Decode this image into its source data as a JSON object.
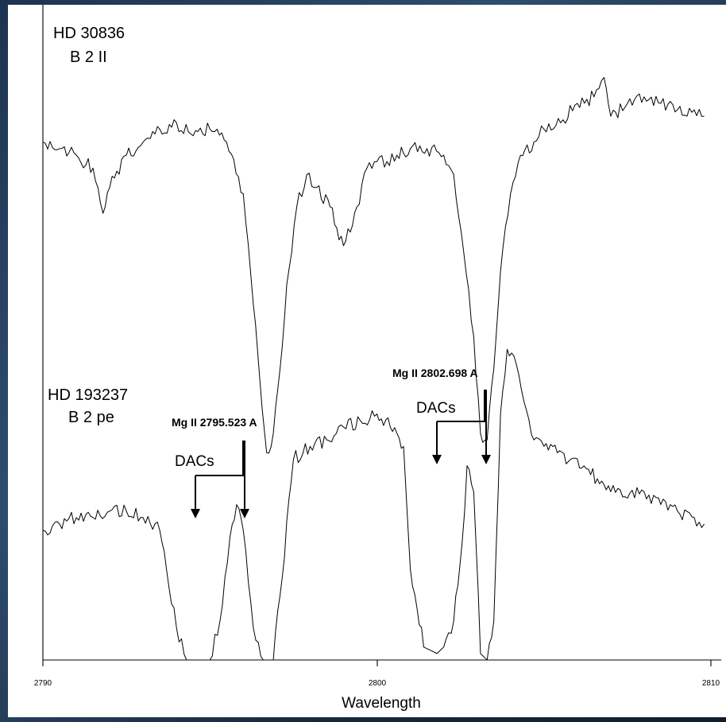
{
  "chart_data": {
    "type": "line",
    "title": "",
    "xlabel": "Wavelength",
    "ylabel": "",
    "xlim": [
      2790,
      2810
    ],
    "x_ticks": [
      "2790",
      "2800",
      "2810"
    ],
    "grid": false,
    "legend": "none",
    "series": [
      {
        "name": "HD 30836",
        "spectral_type": "B 2 II",
        "x": [
          2790.0,
          2790.5,
          2791.0,
          2791.5,
          2791.8,
          2792.0,
          2792.5,
          2793.0,
          2793.5,
          2794.0,
          2794.5,
          2795.0,
          2795.5,
          2796.0,
          2796.3,
          2796.5,
          2796.7,
          2796.9,
          2797.1,
          2797.3,
          2797.6,
          2797.9,
          2798.2,
          2798.6,
          2799.0,
          2799.4,
          2799.7,
          2800.0,
          2800.3,
          2800.6,
          2801.0,
          2801.5,
          2802.0,
          2802.3,
          2802.6,
          2802.9,
          2803.1,
          2803.3,
          2803.5,
          2803.7,
          2804.0,
          2804.3,
          2804.7,
          2805.0,
          2805.5,
          2806.0,
          2806.5,
          2806.8,
          2807.0,
          2807.5,
          2808.0,
          2808.5,
          2809.0,
          2809.5,
          2809.8
        ],
        "y": [
          0.8,
          0.79,
          0.78,
          0.76,
          0.69,
          0.73,
          0.78,
          0.8,
          0.82,
          0.83,
          0.81,
          0.82,
          0.8,
          0.72,
          0.55,
          0.43,
          0.32,
          0.35,
          0.45,
          0.58,
          0.7,
          0.75,
          0.73,
          0.7,
          0.64,
          0.7,
          0.76,
          0.77,
          0.77,
          0.78,
          0.79,
          0.79,
          0.78,
          0.75,
          0.63,
          0.5,
          0.35,
          0.34,
          0.45,
          0.6,
          0.72,
          0.78,
          0.8,
          0.82,
          0.83,
          0.86,
          0.87,
          0.9,
          0.84,
          0.86,
          0.87,
          0.86,
          0.85,
          0.85,
          0.84
        ]
      },
      {
        "name": "HD 193237",
        "spectral_type": "B 2 pe",
        "x": [
          2790.0,
          2790.5,
          2791.0,
          2791.5,
          2792.0,
          2792.5,
          2793.0,
          2793.5,
          2793.7,
          2794.0,
          2794.3,
          2794.6,
          2795.0,
          2795.3,
          2795.6,
          2795.8,
          2796.0,
          2796.3,
          2796.6,
          2796.9,
          2797.1,
          2797.5,
          2798.0,
          2798.5,
          2799.0,
          2799.5,
          2800.0,
          2800.4,
          2800.8,
          2801.0,
          2801.4,
          2801.8,
          2802.0,
          2802.3,
          2802.55,
          2802.7,
          2802.9,
          2803.1,
          2803.3,
          2803.5,
          2803.7,
          2803.9,
          2804.1,
          2804.4,
          2804.7,
          2805.0,
          2805.4,
          2805.8,
          2806.2,
          2806.6,
          2807.0,
          2807.5,
          2808.0,
          2808.5,
          2809.0,
          2809.5,
          2809.8
        ],
        "y": [
          0.2,
          0.21,
          0.22,
          0.22,
          0.23,
          0.23,
          0.22,
          0.2,
          0.14,
          0.05,
          0.0,
          0.0,
          0.0,
          0.06,
          0.19,
          0.24,
          0.2,
          0.05,
          0.0,
          0.0,
          0.1,
          0.31,
          0.33,
          0.34,
          0.36,
          0.37,
          0.38,
          0.36,
          0.33,
          0.14,
          0.02,
          0.01,
          0.02,
          0.06,
          0.18,
          0.3,
          0.26,
          0.01,
          0.0,
          0.06,
          0.38,
          0.48,
          0.47,
          0.4,
          0.34,
          0.33,
          0.32,
          0.31,
          0.3,
          0.28,
          0.26,
          0.25,
          0.26,
          0.24,
          0.23,
          0.22,
          0.21
        ]
      }
    ],
    "annotations": [
      {
        "text": "Mg II 2795.523 A",
        "x": 2795.523
      },
      {
        "text": "Mg II 2802.698 A",
        "x": 2802.698
      },
      {
        "text": "DACs",
        "x": 2794.4
      },
      {
        "text": "DACs",
        "x": 2801.8
      }
    ]
  },
  "labels": {
    "star1_name": "HD 30836",
    "star1_type": "B 2 II",
    "star2_name": "HD 193237",
    "star2_type": "B 2 pe",
    "mg1": "Mg II 2795.523 A",
    "mg2": "Mg II 2802.698 A",
    "dacs1": "DACs",
    "dacs2": "DACs",
    "tick0": "2790",
    "tick1": "2800",
    "tick2": "2810",
    "xlabel": "Wavelength"
  }
}
